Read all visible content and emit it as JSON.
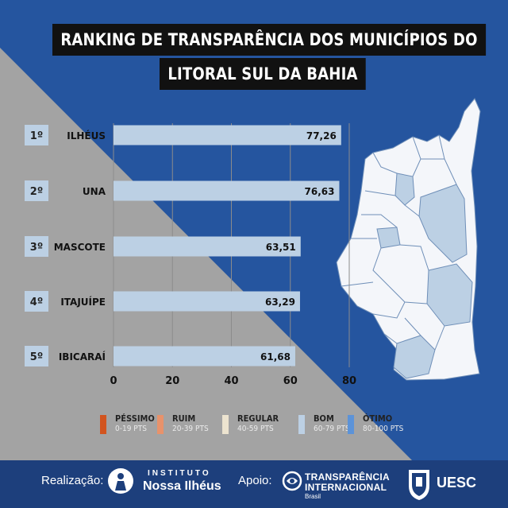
{
  "title": {
    "line1": "RANKING DE TRANSPARÊNCIA DOS MUNICÍPIOS DO",
    "line2": "LITORAL SUL DA BAHIA"
  },
  "chart_data": {
    "type": "bar",
    "orientation": "horizontal",
    "categories": [
      "ILHÉUS",
      "UNA",
      "MASCOTE",
      "ITAJUÍPE",
      "IBICARAÍ"
    ],
    "ranks": [
      "1º",
      "2º",
      "3º",
      "4º",
      "5º"
    ],
    "values": [
      77.26,
      76.63,
      63.51,
      63.29,
      61.68
    ],
    "value_labels": [
      "77,26",
      "76,63",
      "63,51",
      "63,29",
      "61,68"
    ],
    "xlim": [
      0,
      80
    ],
    "xticks": [
      0,
      20,
      40,
      60,
      80
    ],
    "grid": true,
    "bar_color": "#bcd0e4",
    "legend": [
      {
        "label": "PÉSSIMO",
        "range": "0-19 PTS",
        "color": "#d2541f"
      },
      {
        "label": "RUIM",
        "range": "20-39 PTS",
        "color": "#e8926b"
      },
      {
        "label": "REGULAR",
        "range": "40-59 PTS",
        "color": "#ece3cf"
      },
      {
        "label": "BOM",
        "range": "60-79 PTS",
        "color": "#bcd0e4"
      },
      {
        "label": "ÓTIMO",
        "range": "80-100 PTS",
        "color": "#5c93d8"
      }
    ]
  },
  "footer": {
    "realizacao": "Realização:",
    "instituto_top": "INSTITUTO",
    "instituto_bottom": "Nossa Ilhéus",
    "apoio": "Apoio:",
    "ti_line1": "TRANSPARÊNCIA",
    "ti_line2": "INTERNACIONAL",
    "ti_line3": "Brasil",
    "uesc": "UESC"
  }
}
